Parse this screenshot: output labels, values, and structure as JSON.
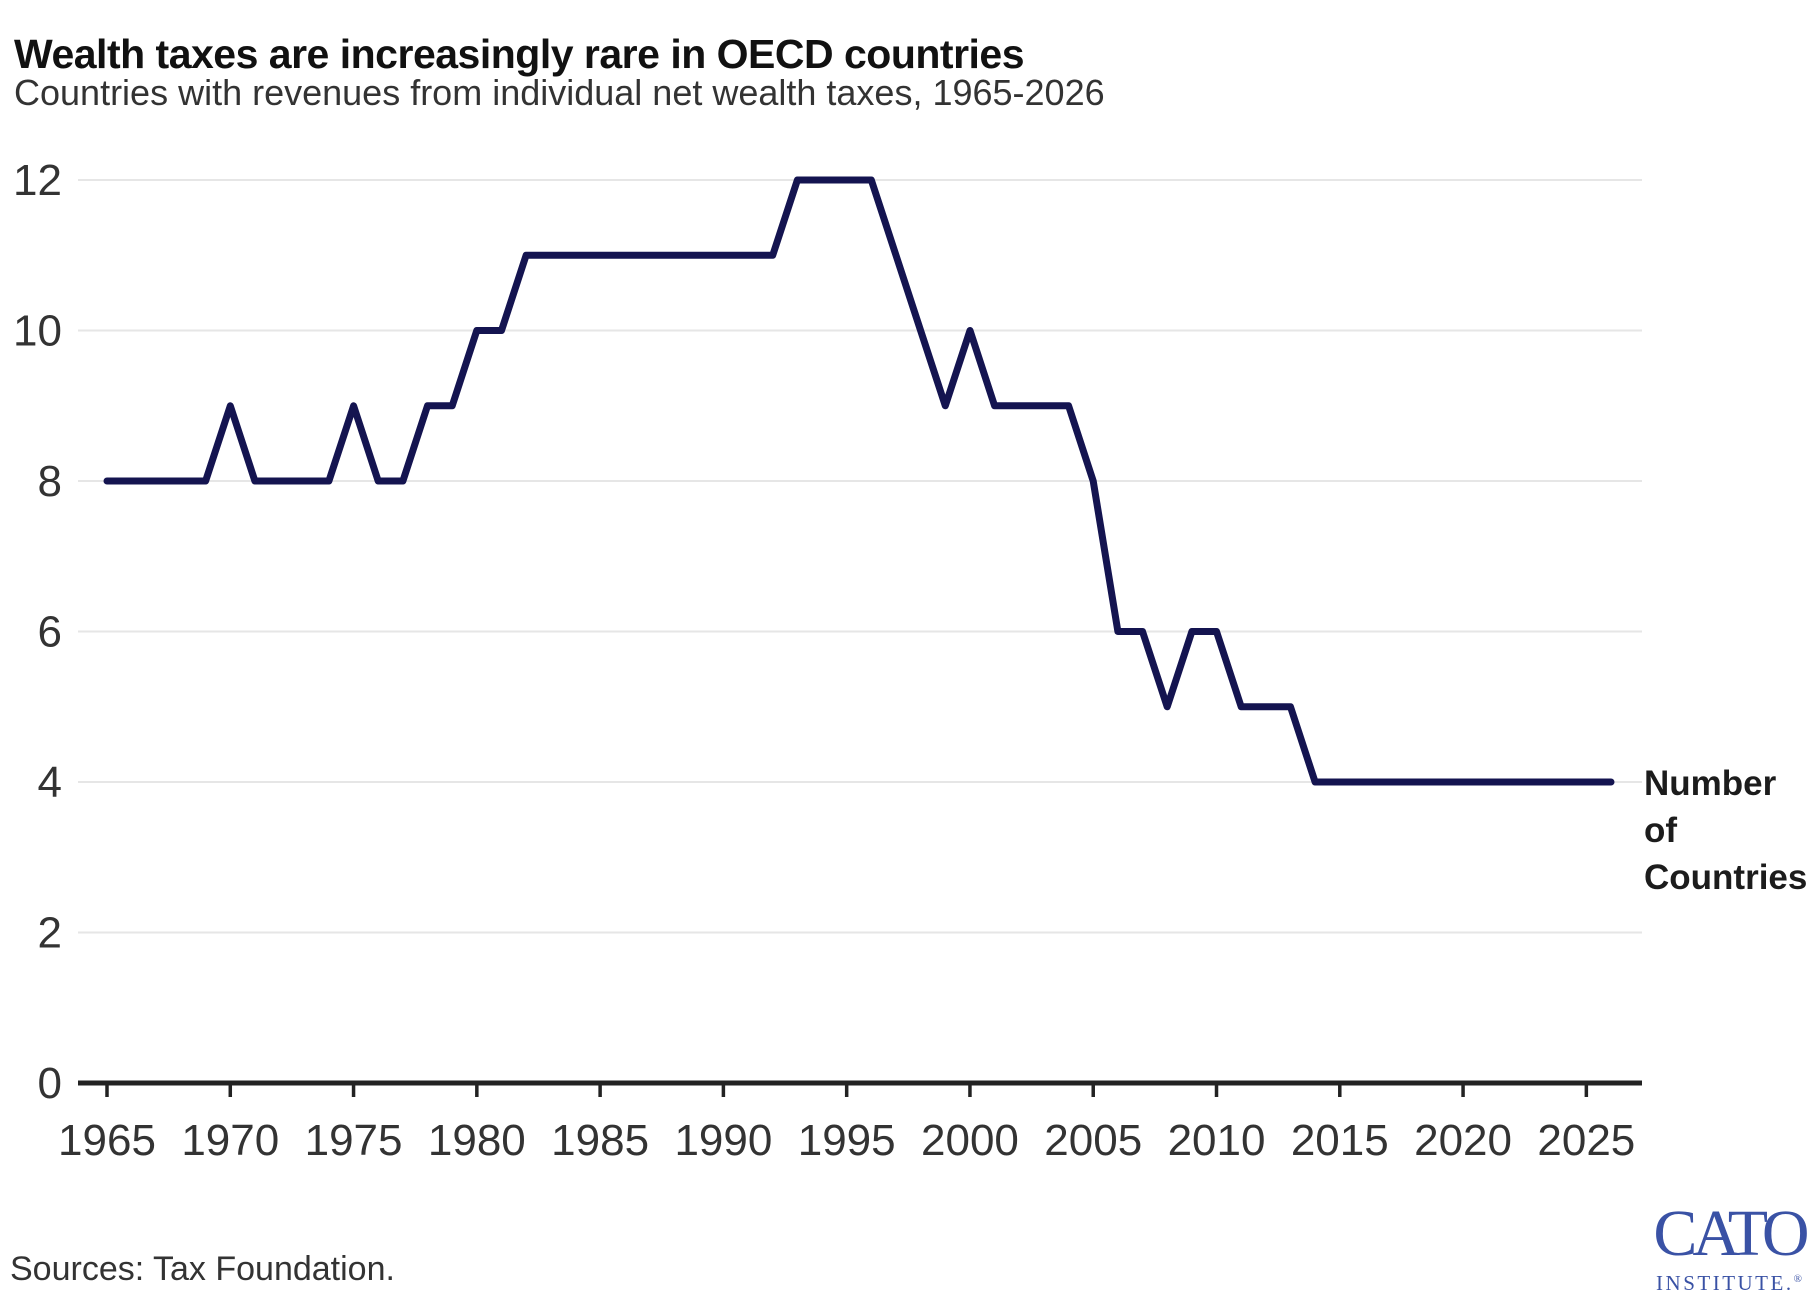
{
  "header": {},
  "chart_data": {
    "type": "line",
    "title": "Wealth taxes are increasingly rare in OECD countries",
    "subtitle": "Countries with revenues from individual net wealth taxes, 1965-2026",
    "x": [
      1965,
      1966,
      1967,
      1968,
      1969,
      1970,
      1971,
      1972,
      1973,
      1974,
      1975,
      1976,
      1977,
      1978,
      1979,
      1980,
      1981,
      1982,
      1983,
      1984,
      1985,
      1986,
      1987,
      1988,
      1989,
      1990,
      1991,
      1992,
      1993,
      1994,
      1995,
      1996,
      1997,
      1998,
      1999,
      2000,
      2001,
      2002,
      2003,
      2004,
      2005,
      2006,
      2007,
      2008,
      2009,
      2010,
      2011,
      2012,
      2013,
      2014,
      2015,
      2016,
      2017,
      2018,
      2019,
      2020,
      2021,
      2022,
      2023,
      2024,
      2025,
      2026
    ],
    "values": [
      8,
      8,
      8,
      8,
      8,
      9,
      8,
      8,
      8,
      8,
      9,
      8,
      8,
      9,
      9,
      10,
      10,
      11,
      11,
      11,
      11,
      11,
      11,
      11,
      11,
      11,
      11,
      11,
      12,
      12,
      12,
      12,
      11,
      10,
      9,
      10,
      9,
      9,
      9,
      9,
      8,
      6,
      6,
      5,
      6,
      6,
      5,
      5,
      5,
      4,
      4,
      4,
      4,
      4,
      4,
      4,
      4,
      4,
      4,
      4,
      4,
      4
    ],
    "series_label": "Number of Countries",
    "series_label_lines": [
      "Number",
      "of",
      "Countries"
    ],
    "xticks": [
      1965,
      1970,
      1975,
      1980,
      1985,
      1990,
      1995,
      2000,
      2005,
      2010,
      2015,
      2020,
      2025
    ],
    "yticks": [
      0,
      2,
      4,
      6,
      8,
      10,
      12
    ],
    "xlim": [
      1965,
      2026
    ],
    "ylim": [
      0,
      12
    ],
    "xlabel": "",
    "ylabel": "",
    "grid": "horizontal",
    "legend_position": "right-annotation"
  },
  "colors": {
    "line": "#141450",
    "grid": "#e6e6e6",
    "axis": "#222222",
    "tick_text": "#333333",
    "annotation_text": "#1c1c1c",
    "logo_blue": "#3a52a5"
  },
  "footer": {
    "sources": "Sources: Tax Foundation."
  },
  "logo": {
    "wordmark": "CATO",
    "subtext": "INSTITUTE.",
    "registered": "®"
  }
}
